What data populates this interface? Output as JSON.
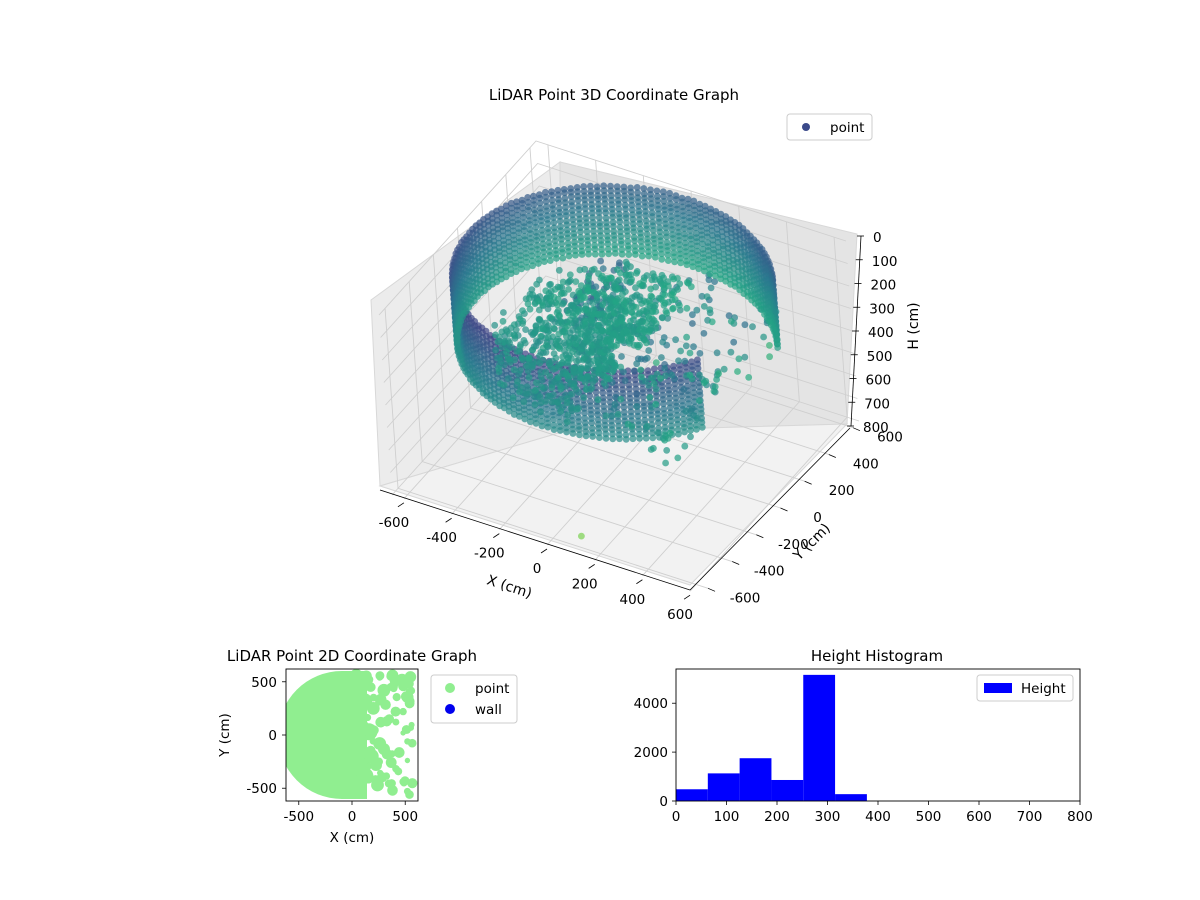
{
  "chart_data": [
    {
      "type": "scatter",
      "title": "LiDAR Point 3D Coordinate Graph",
      "projection": "3d",
      "xlabel": "X (cm)",
      "ylabel": "Y (cm)",
      "zlabel": "H (cm)",
      "xlim": [
        -650,
        650
      ],
      "ylim": [
        -650,
        650
      ],
      "zlim": [
        0,
        800
      ],
      "z_axis_inverted": true,
      "xticks": [
        "-600",
        "-400",
        "-200",
        "0",
        "200",
        "400",
        "600"
      ],
      "yticks": [
        "-600",
        "-400",
        "-200",
        "0",
        "200",
        "400",
        "600"
      ],
      "zticks": [
        "0",
        "100",
        "200",
        "300",
        "400",
        "500",
        "600",
        "700",
        "800"
      ],
      "grid": true,
      "colormap": "viridis",
      "legend": {
        "placement": "top-right",
        "entries": [
          "point"
        ]
      },
      "series": [
        {
          "name": "point",
          "color": "#3b4a8a",
          "structure": "cylindrical wall of points ring radius ~600 cm spanning heights 0-300 cm with an opening toward +X, plus interior clusters and one outlier near the floor",
          "ring_radius": 600,
          "height_range": [
            0,
            300
          ],
          "outlier": {
            "x": 100,
            "y": -560,
            "h": 780
          }
        }
      ]
    },
    {
      "type": "scatter",
      "title": "LiDAR Point 2D Coordinate Graph",
      "xlabel": "X (cm)",
      "ylabel": "Y (cm)",
      "xlim": [
        -620,
        620
      ],
      "ylim": [
        -620,
        620
      ],
      "xticks": [
        "-500",
        "0",
        "500"
      ],
      "yticks": [
        "-500",
        "0",
        "500"
      ],
      "legend": {
        "placement": "outside-right",
        "entries": [
          "point",
          "wall"
        ]
      },
      "series": [
        {
          "name": "point",
          "color": "#90ee90"
        },
        {
          "name": "wall",
          "color": "#0000ee"
        }
      ]
    },
    {
      "type": "bar",
      "title": "Height Histogram",
      "xlabel": "",
      "ylabel": "",
      "xlim": [
        0,
        800
      ],
      "ylim": [
        0,
        5400
      ],
      "xticks": [
        "0",
        "100",
        "200",
        "300",
        "400",
        "500",
        "600",
        "700",
        "800"
      ],
      "yticks": [
        "0",
        "2000",
        "4000"
      ],
      "legend": {
        "placement": "top-right",
        "entries": [
          "Height"
        ]
      },
      "series": [
        {
          "name": "Height",
          "color": "#0000ff",
          "bins": [
            {
              "start": 0,
              "end": 63,
              "count": 480
            },
            {
              "start": 63,
              "end": 126,
              "count": 1130
            },
            {
              "start": 126,
              "end": 189,
              "count": 1750
            },
            {
              "start": 189,
              "end": 252,
              "count": 860
            },
            {
              "start": 252,
              "end": 315,
              "count": 5160
            },
            {
              "start": 315,
              "end": 378,
              "count": 280
            }
          ]
        }
      ]
    }
  ]
}
